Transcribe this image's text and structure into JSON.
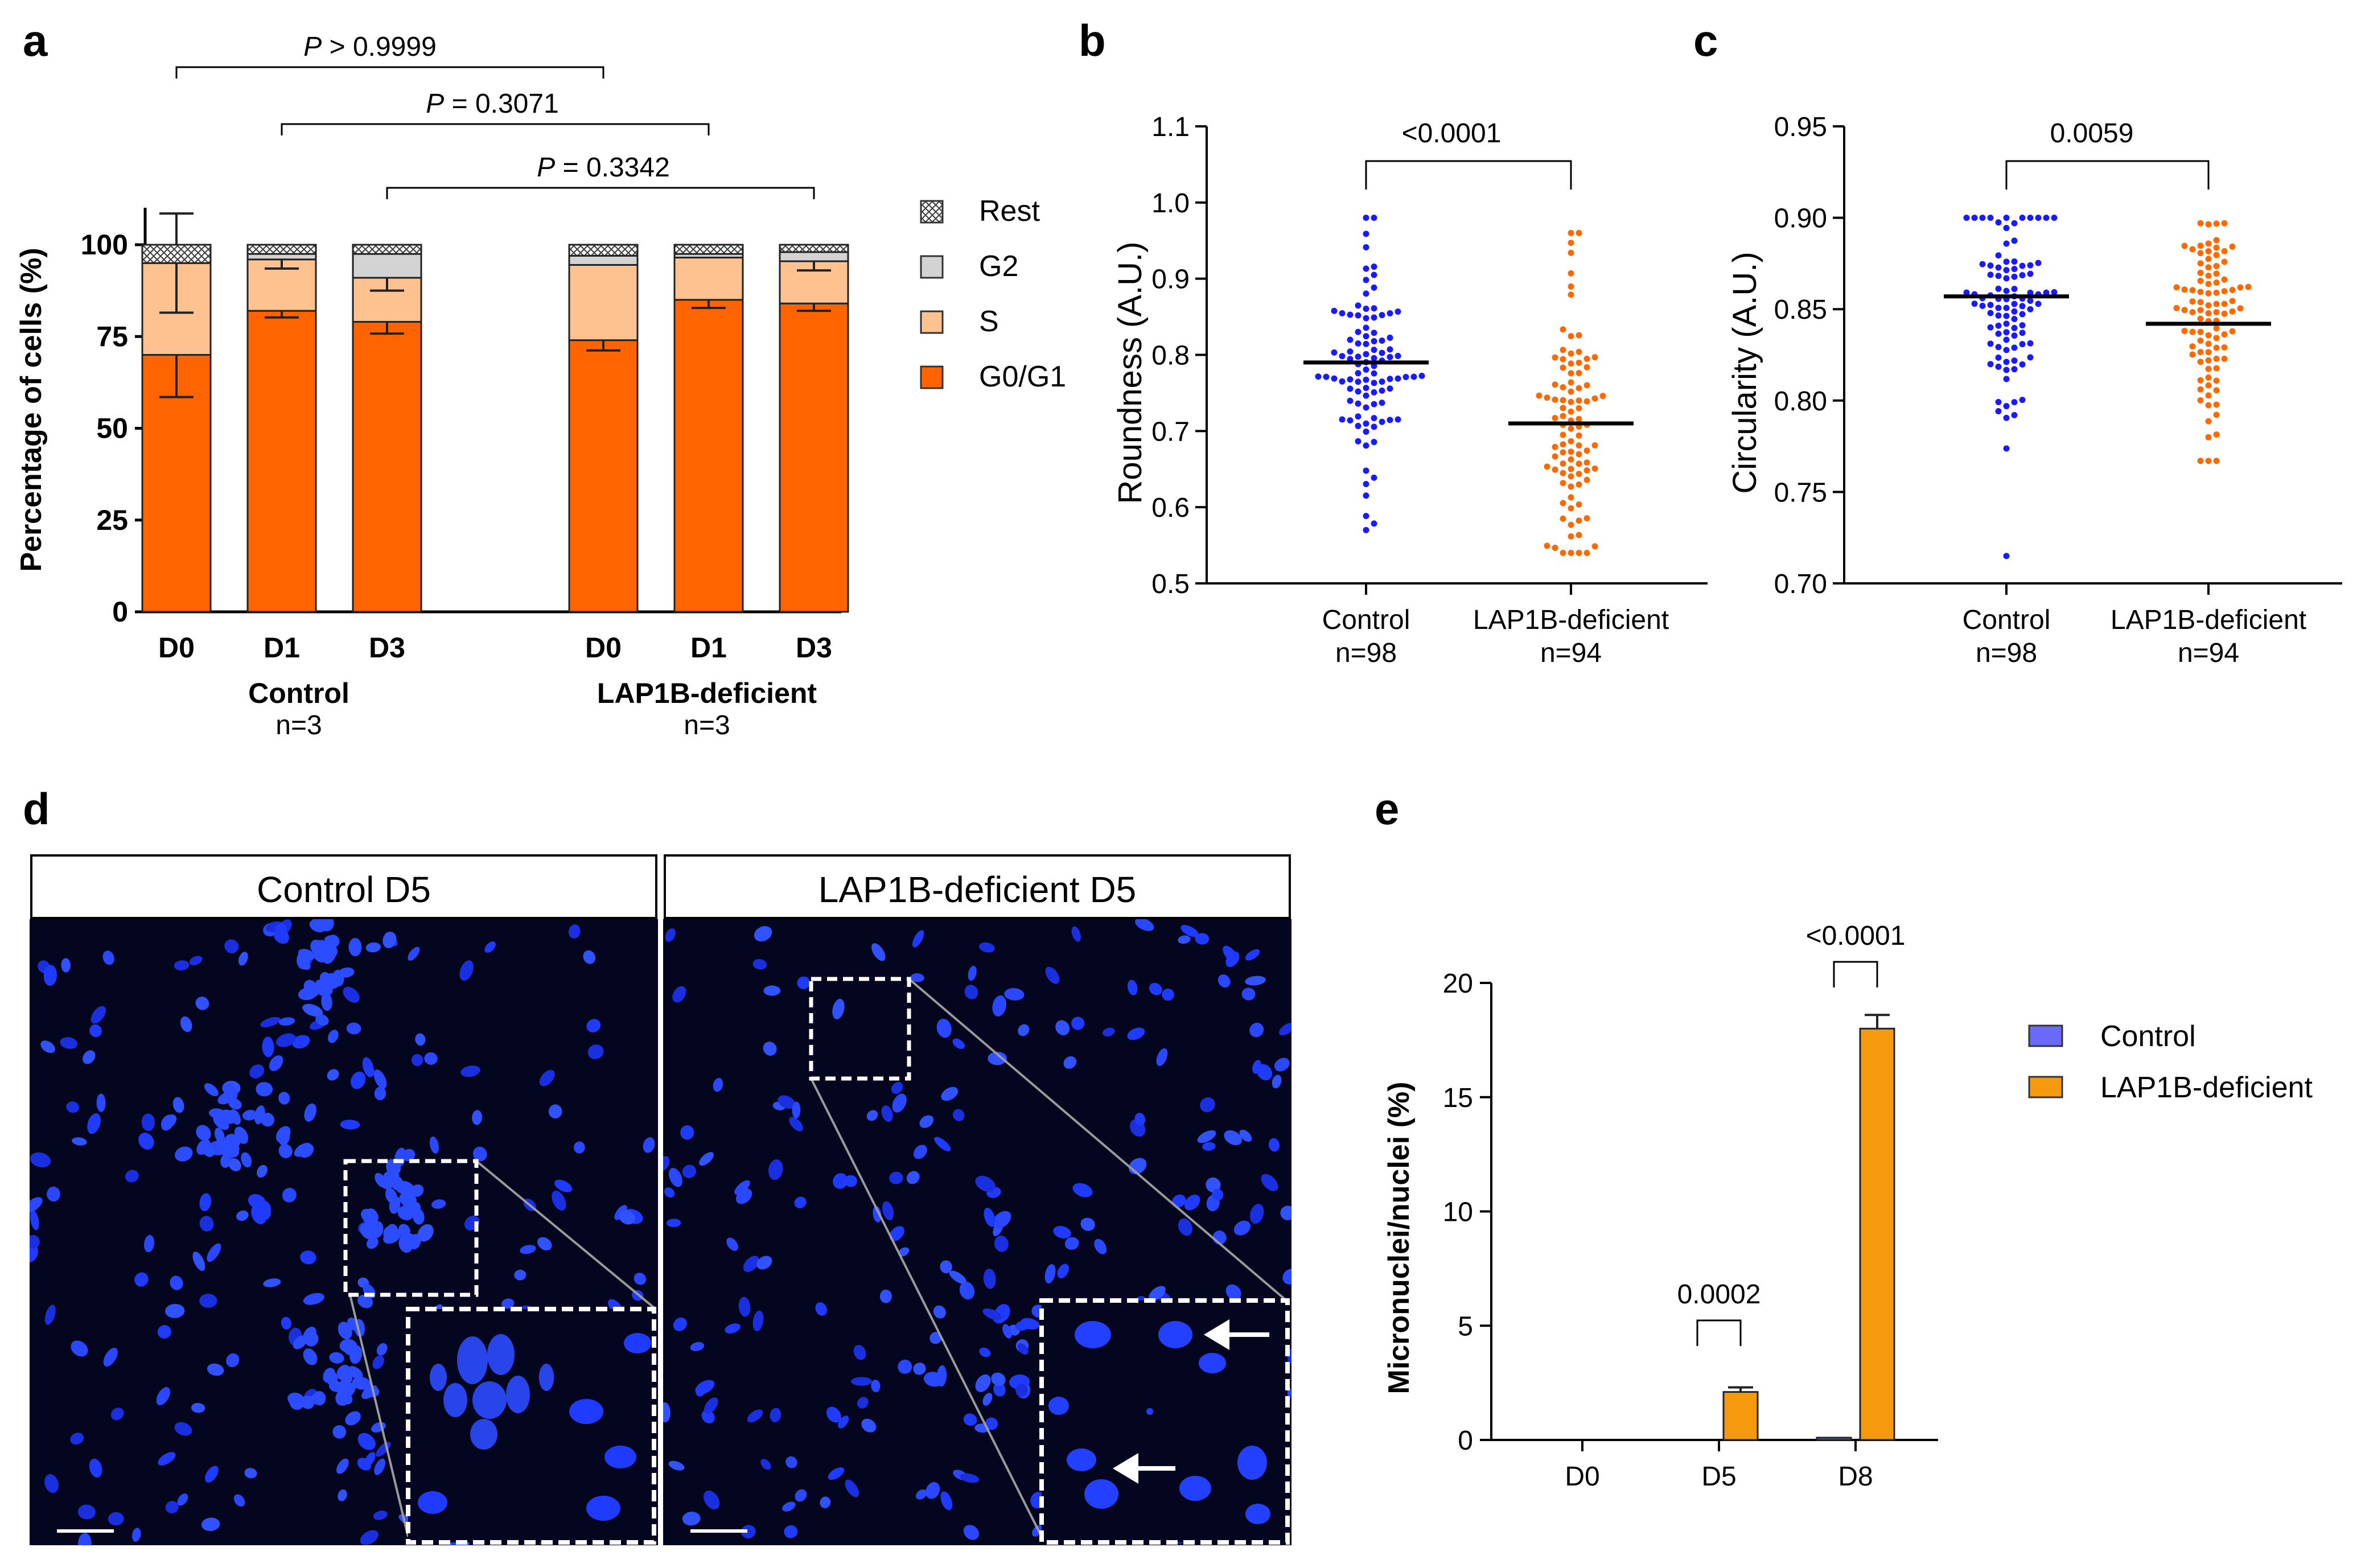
{
  "panels": {
    "a": {
      "label": "a",
      "y_title": "Percentage of cells (%)",
      "y_ticks": [
        "0",
        "25",
        "50",
        "75",
        "100"
      ],
      "comparisons": [
        {
          "p_italic": "P",
          "text": " > 0.9999"
        },
        {
          "p_italic": "P",
          "text": " = 0.3071"
        },
        {
          "p_italic": "P",
          "text": " = 0.3342"
        }
      ],
      "groups": [
        {
          "name": "Control",
          "n": "n=3"
        },
        {
          "name": "LAP1B-deficient",
          "n": "n=3"
        }
      ],
      "legend": [
        {
          "label": "Rest",
          "color": "#d9d9d9",
          "hatch": true
        },
        {
          "label": "G2",
          "color": "#d3d3d3",
          "hatch": false
        },
        {
          "label": "S",
          "color": "#fdc28f",
          "hatch": false
        },
        {
          "label": "G0/G1",
          "color": "#ff6400",
          "hatch": false
        }
      ]
    },
    "b": {
      "label": "b",
      "y_title": "Roundness (A.U.)",
      "y_ticks": [
        "0.5",
        "0.6",
        "0.7",
        "0.8",
        "0.9",
        "1.0",
        "1.1"
      ],
      "comparison": "<0.0001",
      "groups": [
        {
          "name": "Control",
          "n": "n=98"
        },
        {
          "name": "LAP1B-deficient",
          "n": "n=94"
        }
      ]
    },
    "c": {
      "label": "c",
      "y_title": "Circularity (A.U.)",
      "y_ticks": [
        "0.70",
        "0.75",
        "0.80",
        "0.85",
        "0.90",
        "0.95"
      ],
      "comparison": "0.0059",
      "groups": [
        {
          "name": "Control",
          "n": "n=98"
        },
        {
          "name": "LAP1B-deficient",
          "n": "n=94"
        }
      ]
    },
    "d": {
      "label": "d",
      "images": [
        {
          "title": "Control D5"
        },
        {
          "title": "LAP1B-deficient D5"
        }
      ]
    },
    "e": {
      "label": "e",
      "y_title": "Micronuclei/nuclei (%)",
      "y_ticks": [
        "0",
        "5",
        "10",
        "15",
        "20"
      ],
      "comparisons": [
        "0.0002",
        "<0.0001"
      ],
      "legend": [
        {
          "label": "Control",
          "color": "#6a6afa"
        },
        {
          "label": "LAP1B-deficient",
          "color": "#f5990f"
        }
      ]
    }
  },
  "chart_data": [
    {
      "type": "bar",
      "stacked": true,
      "panel": "a",
      "title": "",
      "ylabel": "Percentage of cells (%)",
      "ylim": [
        0,
        100
      ],
      "categories": [
        "D0",
        "D1",
        "D3",
        "D0",
        "D1",
        "D3"
      ],
      "category_groups": [
        "Control",
        "Control",
        "Control",
        "LAP1B-deficient",
        "LAP1B-deficient",
        "LAP1B-deficient"
      ],
      "series": [
        {
          "name": "G0/G1",
          "color": "#ff6400",
          "values": [
            70,
            82,
            79,
            74,
            85,
            84
          ],
          "errors": [
            11.5,
            1.8,
            3.2,
            2.8,
            2.2,
            2.0
          ]
        },
        {
          "name": "S",
          "color": "#fdc28f",
          "values": [
            25,
            14,
            12,
            20.5,
            11.5,
            11.5
          ],
          "errors": [
            13.5,
            2.5,
            3.5,
            0,
            0,
            2.5
          ]
        },
        {
          "name": "G2",
          "color": "#d3d3d3",
          "values": [
            0,
            1.5,
            6.5,
            2.5,
            1,
            2.5
          ],
          "errors": [
            0,
            0,
            0,
            0,
            0,
            0
          ]
        },
        {
          "name": "Rest",
          "color": "#d9d9d9",
          "values": [
            5,
            2.5,
            2.5,
            3,
            2.5,
            2
          ],
          "errors": [
            0,
            0,
            0,
            0,
            0,
            0
          ]
        }
      ]
    },
    {
      "type": "scatter",
      "panel": "b",
      "ylabel": "Roundness (A.U.)",
      "ylim": [
        0.5,
        1.1
      ],
      "categories": [
        "Control",
        "LAP1B-deficient"
      ],
      "series": [
        {
          "name": "Control",
          "color": "#1a1aff",
          "mean": 0.79,
          "min": 0.57,
          "max": 0.98,
          "n": 98
        },
        {
          "name": "LAP1B-deficient",
          "color": "#ff6a00",
          "mean": 0.71,
          "min": 0.54,
          "max": 0.96,
          "n": 94
        }
      ]
    },
    {
      "type": "scatter",
      "panel": "c",
      "ylabel": "Circularity (A.U.)",
      "ylim": [
        0.7,
        0.95
      ],
      "categories": [
        "Control",
        "LAP1B-deficient"
      ],
      "series": [
        {
          "name": "Control",
          "color": "#1a1aff",
          "mean": 0.857,
          "min": 0.715,
          "max": 0.9,
          "n": 98
        },
        {
          "name": "LAP1B-deficient",
          "color": "#ff6a00",
          "mean": 0.842,
          "min": 0.767,
          "max": 0.897,
          "n": 94
        }
      ]
    },
    {
      "type": "bar",
      "panel": "e",
      "ylabel": "Micronuclei/nuclei (%)",
      "ylim": [
        0,
        20
      ],
      "categories": [
        "D0",
        "D5",
        "D8"
      ],
      "series": [
        {
          "name": "Control",
          "color": "#6a6afa",
          "values": [
            0,
            0,
            0.1
          ],
          "errors": [
            0,
            0,
            0
          ]
        },
        {
          "name": "LAP1B-deficient",
          "color": "#f5990f",
          "values": [
            0,
            2.1,
            18.0
          ],
          "errors": [
            0,
            0.2,
            0.6
          ]
        }
      ]
    }
  ]
}
